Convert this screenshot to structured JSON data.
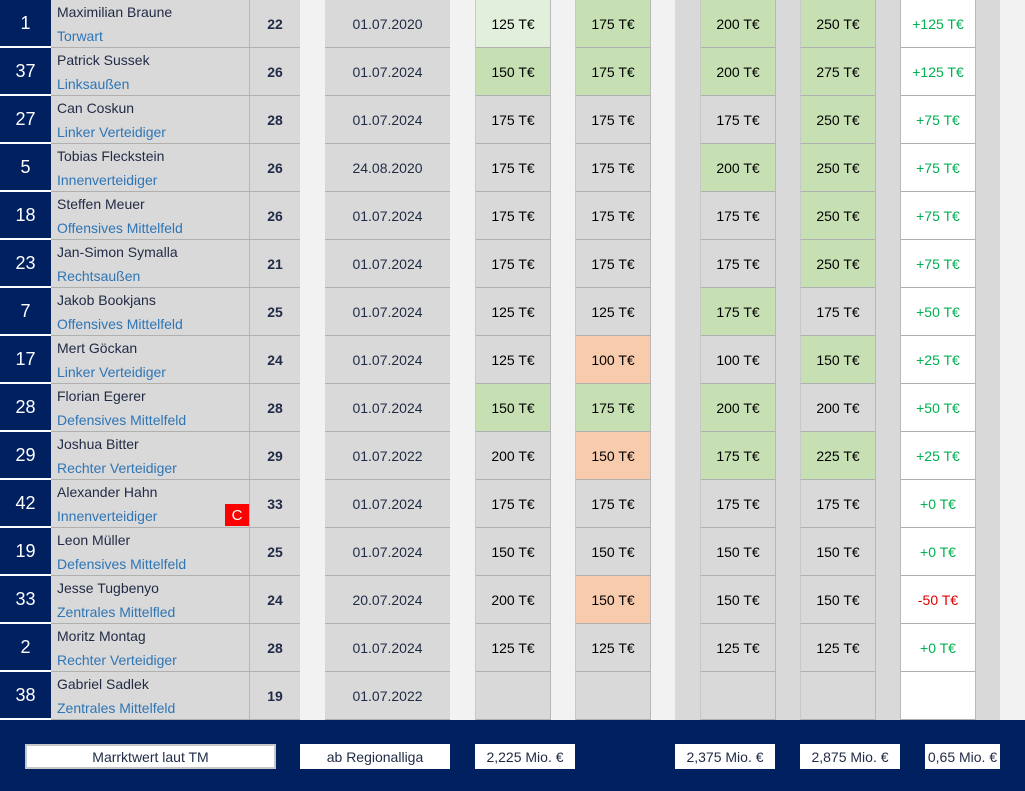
{
  "colors": {
    "navy": "#002060",
    "green": "#c6e0b4",
    "light_green": "#e2efda",
    "orange": "#f8cbad",
    "grey": "#d9d9d9",
    "positive": "#00b050",
    "negative": "#e00000",
    "captain": "#ff0000"
  },
  "players": [
    {
      "number": "1",
      "name": "Maximilian Braune",
      "position": "Torwart",
      "age": "22",
      "date": "01.07.2020",
      "values": [
        [
          "125 T€",
          "lg"
        ],
        [
          "175 T€",
          "g"
        ],
        [
          "200 T€",
          "g"
        ],
        [
          "250 T€",
          "g"
        ]
      ],
      "diff": "+125 T€",
      "diff_type": "pos"
    },
    {
      "number": "37",
      "name": "Patrick Sussek",
      "position": "Linksaußen",
      "age": "26",
      "date": "01.07.2024",
      "values": [
        [
          "150 T€",
          "g"
        ],
        [
          "175 T€",
          "g"
        ],
        [
          "200 T€",
          "g"
        ],
        [
          "275 T€",
          "g"
        ]
      ],
      "diff": "+125 T€",
      "diff_type": "pos"
    },
    {
      "number": "27",
      "name": "Can Coskun",
      "position": "Linker Verteidiger",
      "age": "28",
      "date": "01.07.2024",
      "values": [
        [
          "175 T€",
          ""
        ],
        [
          "175 T€",
          ""
        ],
        [
          "175 T€",
          ""
        ],
        [
          "250 T€",
          "g"
        ]
      ],
      "diff": "+75 T€",
      "diff_type": "pos"
    },
    {
      "number": "5",
      "name": "Tobias Fleckstein",
      "position": "Innenverteidiger",
      "age": "26",
      "date": "24.08.2020",
      "values": [
        [
          "175 T€",
          ""
        ],
        [
          "175 T€",
          ""
        ],
        [
          "200 T€",
          "g"
        ],
        [
          "250 T€",
          "g"
        ]
      ],
      "diff": "+75 T€",
      "diff_type": "pos"
    },
    {
      "number": "18",
      "name": "Steffen Meuer",
      "position": "Offensives Mittelfeld",
      "age": "26",
      "date": "01.07.2024",
      "values": [
        [
          "175 T€",
          ""
        ],
        [
          "175 T€",
          ""
        ],
        [
          "175 T€",
          ""
        ],
        [
          "250 T€",
          "g"
        ]
      ],
      "diff": "+75 T€",
      "diff_type": "pos"
    },
    {
      "number": "23",
      "name": "Jan-Simon Symalla",
      "position": "Rechtsaußen",
      "age": "21",
      "date": "01.07.2024",
      "values": [
        [
          "175 T€",
          ""
        ],
        [
          "175 T€",
          ""
        ],
        [
          "175 T€",
          ""
        ],
        [
          "250 T€",
          "g"
        ]
      ],
      "diff": "+75 T€",
      "diff_type": "pos"
    },
    {
      "number": "7",
      "name": "Jakob Bookjans",
      "position": "Offensives Mittelfeld",
      "age": "25",
      "date": "01.07.2024",
      "values": [
        [
          "125 T€",
          ""
        ],
        [
          "125 T€",
          ""
        ],
        [
          "175 T€",
          "g"
        ],
        [
          "175 T€",
          ""
        ]
      ],
      "diff": "+50 T€",
      "diff_type": "pos"
    },
    {
      "number": "17",
      "name": "Mert Göckan",
      "position": "Linker Verteidiger",
      "age": "24",
      "date": "01.07.2024",
      "values": [
        [
          "125 T€",
          ""
        ],
        [
          "100 T€",
          "o"
        ],
        [
          "100 T€",
          ""
        ],
        [
          "150 T€",
          "g"
        ]
      ],
      "diff": "+25 T€",
      "diff_type": "pos"
    },
    {
      "number": "28",
      "name": "Florian Egerer",
      "position": "Defensives Mittelfeld",
      "age": "28",
      "date": "01.07.2024",
      "values": [
        [
          "150 T€",
          "g"
        ],
        [
          "175 T€",
          "g"
        ],
        [
          "200 T€",
          "g"
        ],
        [
          "200 T€",
          ""
        ]
      ],
      "diff": "+50 T€",
      "diff_type": "pos"
    },
    {
      "number": "29",
      "name": "Joshua Bitter",
      "position": "Rechter Verteidiger",
      "age": "29",
      "date": "01.07.2022",
      "values": [
        [
          "200 T€",
          ""
        ],
        [
          "150 T€",
          "o"
        ],
        [
          "175 T€",
          "g"
        ],
        [
          "225 T€",
          "g"
        ]
      ],
      "diff": "+25 T€",
      "diff_type": "pos"
    },
    {
      "number": "42",
      "name": "Alexander Hahn",
      "position": "Innenverteidiger",
      "age": "33",
      "date": "01.07.2024",
      "captain": "C",
      "values": [
        [
          "175 T€",
          ""
        ],
        [
          "175 T€",
          ""
        ],
        [
          "175 T€",
          ""
        ],
        [
          "175 T€",
          ""
        ]
      ],
      "diff": "+0 T€",
      "diff_type": "zero"
    },
    {
      "number": "19",
      "name": "Leon Müller",
      "position": "Defensives Mittelfeld",
      "age": "25",
      "date": "01.07.2024",
      "values": [
        [
          "150 T€",
          ""
        ],
        [
          "150 T€",
          ""
        ],
        [
          "150 T€",
          ""
        ],
        [
          "150 T€",
          ""
        ]
      ],
      "diff": "+0 T€",
      "diff_type": "zero"
    },
    {
      "number": "33",
      "name": "Jesse Tugbenyo",
      "position": "Zentrales Mittelfled",
      "age": "24",
      "date": "20.07.2024",
      "values": [
        [
          "200 T€",
          ""
        ],
        [
          "150 T€",
          "o"
        ],
        [
          "150 T€",
          ""
        ],
        [
          "150 T€",
          ""
        ]
      ],
      "diff": "-50 T€",
      "diff_type": "neg"
    },
    {
      "number": "2",
      "name": "Moritz Montag",
      "position": "Rechter Verteidiger",
      "age": "28",
      "date": "01.07.2024",
      "values": [
        [
          "125 T€",
          ""
        ],
        [
          "125 T€",
          ""
        ],
        [
          "125 T€",
          ""
        ],
        [
          "125 T€",
          ""
        ]
      ],
      "diff": "+0 T€",
      "diff_type": "zero"
    },
    {
      "number": "38",
      "name": "Gabriel Sadlek",
      "position": "Zentrales Mittelfeld",
      "age": "19",
      "date": "01.07.2022",
      "values": [
        [
          "",
          ""
        ],
        [
          "",
          ""
        ],
        [
          "",
          ""
        ],
        [
          "",
          ""
        ]
      ],
      "diff": "",
      "diff_type": "zero"
    }
  ],
  "footer": {
    "label": "Marrktwert laut TM",
    "league": "ab Regionalliga",
    "total1": "2,225 Mio. €",
    "total3": "2,375 Mio. €",
    "total4": "2,875 Mio. €",
    "diff_total": "0,65 Mio. €"
  }
}
